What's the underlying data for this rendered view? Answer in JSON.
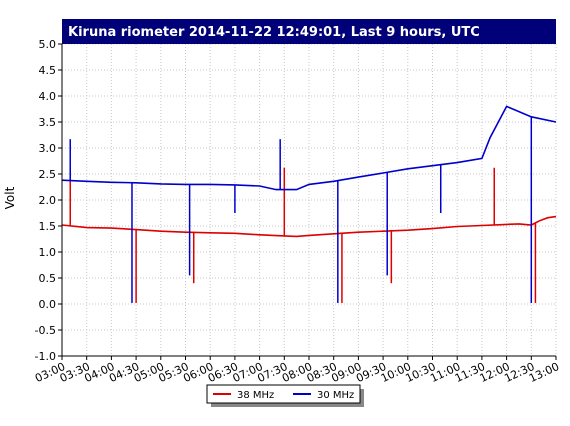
{
  "chart_data": {
    "type": "line",
    "title": "Kiruna riometer 2014-11-22 12:49:01, Last 9 hours, UTC",
    "xlabel": "",
    "ylabel": "Volt",
    "xlim": [
      "03:00",
      "13:00"
    ],
    "ylim": [
      -1.0,
      5.0
    ],
    "grid": true,
    "legend_position": "bottom-center",
    "x_tick_labels": [
      "03:00",
      "03:30",
      "04:00",
      "04:30",
      "05:00",
      "05:30",
      "06:00",
      "06:30",
      "07:00",
      "07:30",
      "08:00",
      "08:30",
      "09:00",
      "09:30",
      "10:00",
      "10:30",
      "11:00",
      "11:30",
      "12:00",
      "12:30",
      "13:00"
    ],
    "y_tick_labels": [
      "-1.0",
      "-0.5",
      "0.0",
      "0.5",
      "1.0",
      "1.5",
      "2.0",
      "2.5",
      "3.0",
      "3.5",
      "4.0",
      "4.5",
      "5.0"
    ],
    "series": [
      {
        "name": "38 MHz",
        "color": "#dd0000",
        "baseline": [
          [
            "03:00",
            1.52
          ],
          [
            "03:30",
            1.47
          ],
          [
            "04:00",
            1.46
          ],
          [
            "04:30",
            1.43
          ],
          [
            "05:00",
            1.4
          ],
          [
            "05:30",
            1.38
          ],
          [
            "06:00",
            1.37
          ],
          [
            "06:30",
            1.36
          ],
          [
            "07:00",
            1.33
          ],
          [
            "07:30",
            1.31
          ],
          [
            "07:45",
            1.3
          ],
          [
            "08:00",
            1.32
          ],
          [
            "08:30",
            1.35
          ],
          [
            "09:00",
            1.38
          ],
          [
            "09:30",
            1.4
          ],
          [
            "10:00",
            1.42
          ],
          [
            "10:30",
            1.45
          ],
          [
            "11:00",
            1.49
          ],
          [
            "11:30",
            1.51
          ],
          [
            "12:00",
            1.53
          ],
          [
            "12:15",
            1.54
          ],
          [
            "12:30",
            1.52
          ],
          [
            "12:40",
            1.6
          ],
          [
            "12:50",
            1.66
          ],
          [
            "13:00",
            1.68
          ]
        ],
        "spikes": [
          [
            "03:10",
            2.62
          ],
          [
            "04:30",
            0.02
          ],
          [
            "05:40",
            0.4
          ],
          [
            "07:30",
            2.62
          ],
          [
            "08:40",
            0.02
          ],
          [
            "09:40",
            0.4
          ],
          [
            "11:45",
            2.62
          ],
          [
            "12:35",
            0.02
          ]
        ]
      },
      {
        "name": "30 MHz",
        "color": "#0000cc",
        "baseline": [
          [
            "03:00",
            2.38
          ],
          [
            "03:30",
            2.36
          ],
          [
            "04:00",
            2.34
          ],
          [
            "04:30",
            2.33
          ],
          [
            "05:00",
            2.31
          ],
          [
            "05:30",
            2.3
          ],
          [
            "06:00",
            2.3
          ],
          [
            "06:30",
            2.29
          ],
          [
            "07:00",
            2.27
          ],
          [
            "07:20",
            2.2
          ],
          [
            "07:45",
            2.2
          ],
          [
            "08:00",
            2.3
          ],
          [
            "08:30",
            2.36
          ],
          [
            "09:00",
            2.44
          ],
          [
            "09:30",
            2.52
          ],
          [
            "10:00",
            2.6
          ],
          [
            "10:30",
            2.66
          ],
          [
            "11:00",
            2.72
          ],
          [
            "11:30",
            2.8
          ],
          [
            "11:40",
            3.2
          ],
          [
            "12:00",
            3.8
          ],
          [
            "12:30",
            3.6
          ],
          [
            "13:00",
            3.5
          ]
        ],
        "spikes": [
          [
            "03:10",
            3.17
          ],
          [
            "04:25",
            0.02
          ],
          [
            "05:35",
            0.55
          ],
          [
            "06:30",
            1.75
          ],
          [
            "07:25",
            3.17
          ],
          [
            "08:35",
            0.02
          ],
          [
            "09:35",
            0.55
          ],
          [
            "10:40",
            1.75
          ],
          [
            "12:30",
            0.02
          ]
        ]
      }
    ]
  }
}
